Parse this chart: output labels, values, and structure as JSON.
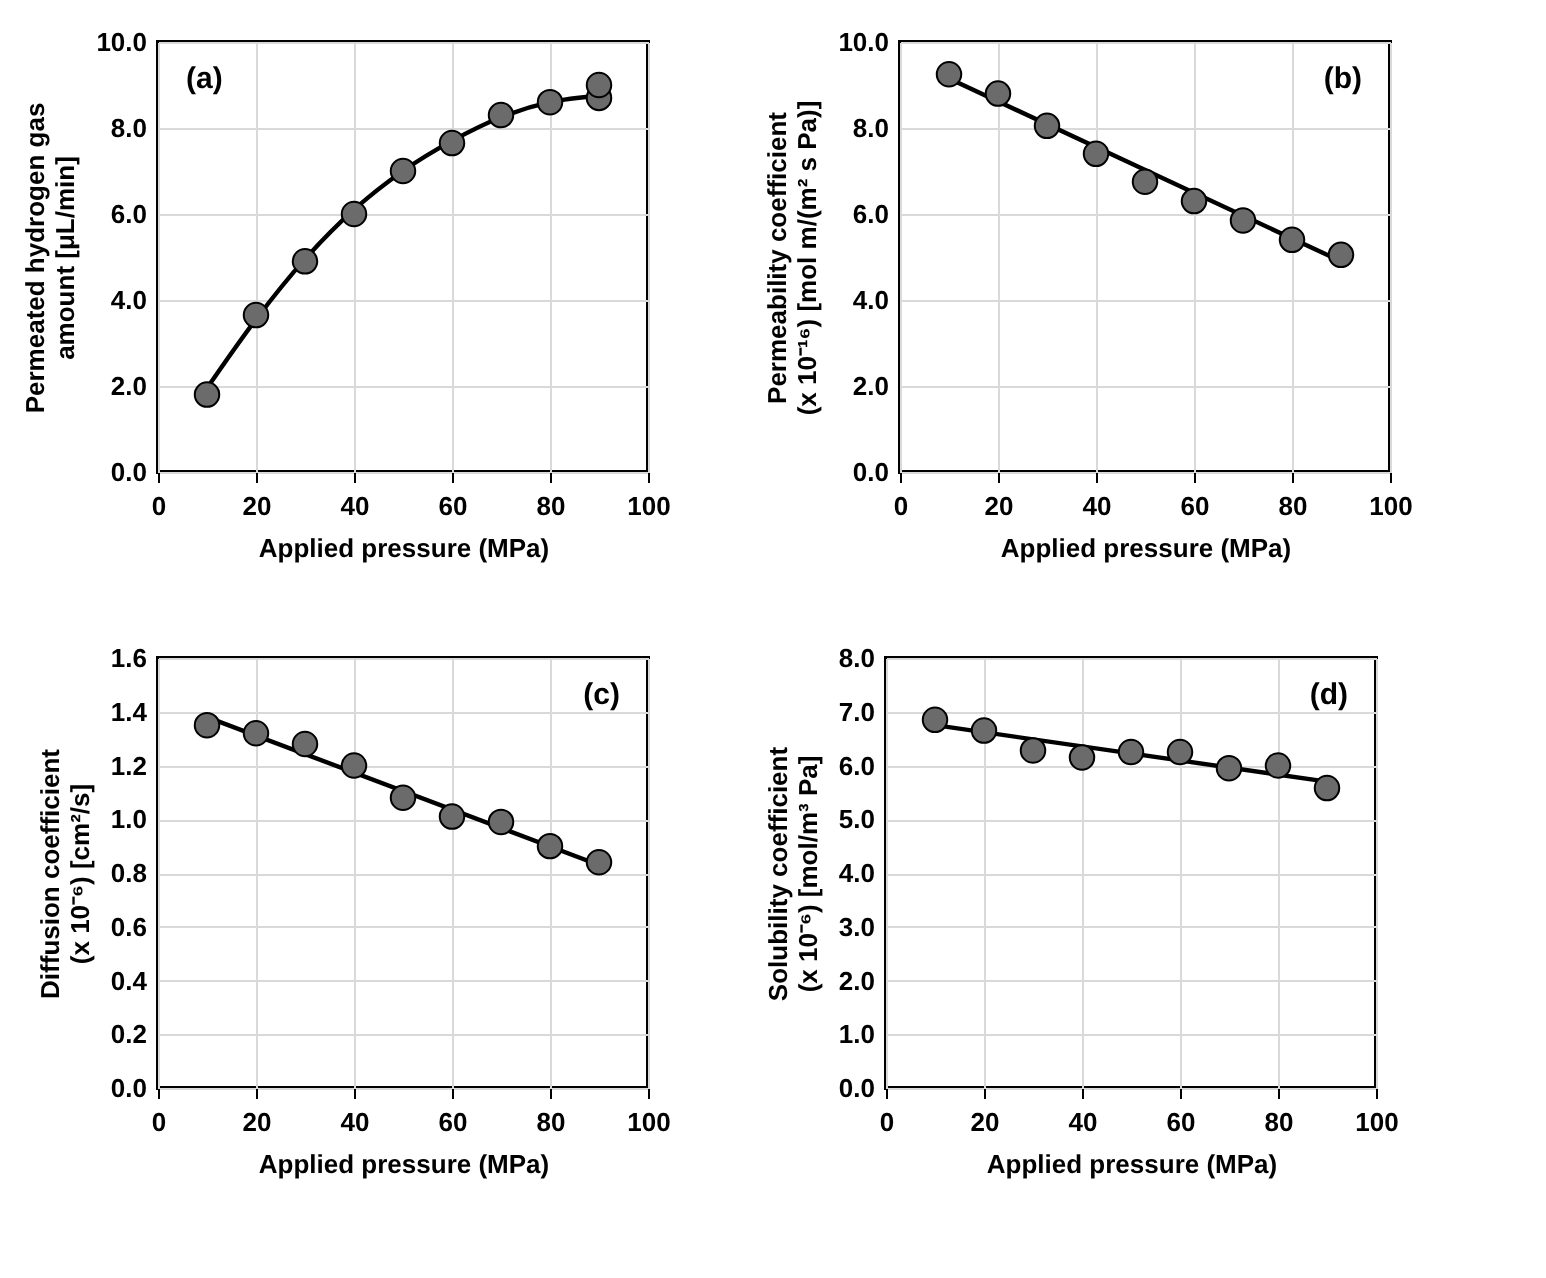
{
  "chart_data": [
    {
      "type": "scatter",
      "xlabel": "Applied pressure (MPa)",
      "ylabel": "Permeated hydrogen gas\namount [μL/min]",
      "annotations": [
        "(a)"
      ],
      "xlim": [
        0,
        100
      ],
      "xticks": [
        0,
        20,
        40,
        60,
        80,
        100
      ],
      "ylim": [
        0,
        10
      ],
      "yticks": [
        {
          "value": 0,
          "label": "0.0"
        },
        {
          "value": 2,
          "label": "2.0"
        },
        {
          "value": 4,
          "label": "4.0"
        },
        {
          "value": 6,
          "label": "6.0"
        },
        {
          "value": 8,
          "label": "8.0"
        },
        {
          "value": 10,
          "label": "10.0"
        }
      ],
      "grid": true,
      "series": [
        {
          "type": "scatter",
          "marker": "circle",
          "color": "#6b6b6b",
          "x": [
            10,
            20,
            30,
            40,
            50,
            60,
            70,
            80,
            90,
            90
          ],
          "values": [
            1.8,
            3.65,
            4.9,
            6.0,
            7.0,
            7.65,
            8.3,
            8.6,
            8.7,
            9.0
          ]
        },
        {
          "type": "line",
          "line_style": "solid",
          "color": "#000000",
          "x": [
            10,
            20,
            30,
            40,
            50,
            60,
            70,
            80,
            90
          ],
          "values": [
            1.95,
            3.55,
            4.95,
            6.1,
            7.0,
            7.7,
            8.25,
            8.6,
            8.75
          ]
        }
      ]
    },
    {
      "type": "scatter",
      "xlabel": "Applied pressure (MPa)",
      "ylabel": "Permeability coefficient\n(x 10⁻¹⁶) [mol m/(m² s Pa)]",
      "annotations": [
        "(b)"
      ],
      "xlim": [
        0,
        100
      ],
      "xticks": [
        0,
        20,
        40,
        60,
        80,
        100
      ],
      "ylim": [
        0,
        10
      ],
      "yticks": [
        {
          "value": 0,
          "label": "0.0"
        },
        {
          "value": 2,
          "label": "2.0"
        },
        {
          "value": 4,
          "label": "4.0"
        },
        {
          "value": 6,
          "label": "6.0"
        },
        {
          "value": 8,
          "label": "8.0"
        },
        {
          "value": 10,
          "label": "10.0"
        }
      ],
      "grid": true,
      "series": [
        {
          "type": "scatter",
          "marker": "circle",
          "color": "#6b6b6b",
          "x": [
            10,
            20,
            30,
            40,
            50,
            60,
            70,
            80,
            90
          ],
          "values": [
            9.25,
            8.8,
            8.05,
            7.4,
            6.75,
            6.3,
            5.85,
            5.4,
            5.05
          ]
        },
        {
          "type": "line",
          "line_style": "solid",
          "color": "#000000",
          "x": [
            10,
            90
          ],
          "values": [
            9.15,
            4.9
          ]
        }
      ]
    },
    {
      "type": "scatter",
      "xlabel": "Applied pressure (MPa)",
      "ylabel": "Diffusion coefficient\n(x 10⁻⁶) [cm²/s]",
      "annotations": [
        "(c)"
      ],
      "xlim": [
        0,
        100
      ],
      "xticks": [
        0,
        20,
        40,
        60,
        80,
        100
      ],
      "ylim": [
        0,
        1.6
      ],
      "yticks": [
        {
          "value": 0,
          "label": "0.0"
        },
        {
          "value": 0.2,
          "label": "0.2"
        },
        {
          "value": 0.4,
          "label": "0.4"
        },
        {
          "value": 0.6,
          "label": "0.6"
        },
        {
          "value": 0.8,
          "label": "0.8"
        },
        {
          "value": 1,
          "label": "1.0"
        },
        {
          "value": 1.2,
          "label": "1.2"
        },
        {
          "value": 1.4,
          "label": "1.4"
        },
        {
          "value": 1.6,
          "label": "1.6"
        }
      ],
      "grid": true,
      "series": [
        {
          "type": "scatter",
          "marker": "circle",
          "color": "#6b6b6b",
          "x": [
            10,
            20,
            30,
            40,
            50,
            60,
            70,
            80,
            90
          ],
          "values": [
            1.35,
            1.32,
            1.28,
            1.2,
            1.08,
            1.01,
            0.99,
            0.9,
            0.84
          ]
        },
        {
          "type": "line",
          "line_style": "solid",
          "color": "#000000",
          "x": [
            10,
            90
          ],
          "values": [
            1.38,
            0.83
          ]
        }
      ]
    },
    {
      "type": "scatter",
      "xlabel": "Applied pressure (MPa)",
      "ylabel": "Solubility coefficient\n(x 10⁻⁶) [mol/m³ Pa]",
      "annotations": [
        "(d)"
      ],
      "xlim": [
        0,
        100
      ],
      "xticks": [
        0,
        20,
        40,
        60,
        80,
        100
      ],
      "ylim": [
        0,
        8
      ],
      "yticks": [
        {
          "value": 0,
          "label": "0.0"
        },
        {
          "value": 1,
          "label": "1.0"
        },
        {
          "value": 2,
          "label": "2.0"
        },
        {
          "value": 3,
          "label": "3.0"
        },
        {
          "value": 4,
          "label": "4.0"
        },
        {
          "value": 5,
          "label": "5.0"
        },
        {
          "value": 6,
          "label": "6.0"
        },
        {
          "value": 7,
          "label": "7.0"
        },
        {
          "value": 8,
          "label": "8.0"
        }
      ],
      "grid": true,
      "series": [
        {
          "type": "scatter",
          "marker": "circle",
          "color": "#6b6b6b",
          "x": [
            10,
            20,
            30,
            40,
            50,
            60,
            70,
            80,
            90
          ],
          "values": [
            6.85,
            6.65,
            6.28,
            6.15,
            6.25,
            6.25,
            5.95,
            6.0,
            5.58
          ]
        },
        {
          "type": "line",
          "line_style": "solid",
          "color": "#000000",
          "x": [
            10,
            90
          ],
          "values": [
            6.75,
            5.7
          ]
        }
      ]
    }
  ]
}
